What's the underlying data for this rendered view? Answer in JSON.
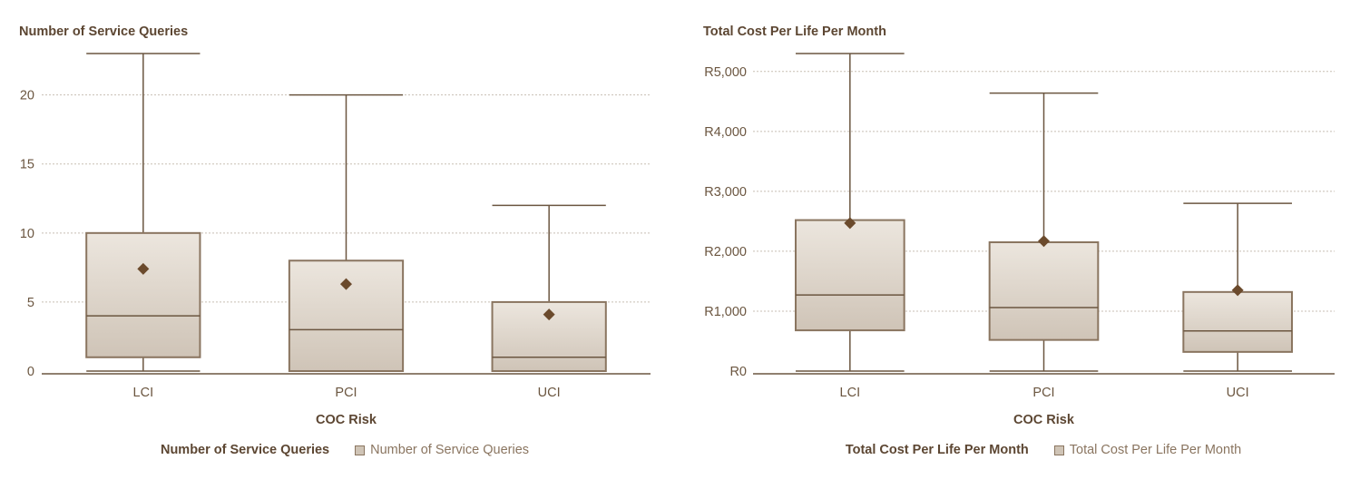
{
  "chart_data": [
    {
      "type": "box",
      "title": "Number of Service Queries",
      "xlabel": "COC Risk",
      "ylabel": "",
      "ylim": [
        0,
        23
      ],
      "yticks": [
        0,
        5,
        10,
        15,
        20
      ],
      "ytick_labels": [
        "0",
        "5",
        "10",
        "15",
        "20"
      ],
      "categories": [
        "LCI",
        "PCI",
        "UCI"
      ],
      "boxes": [
        {
          "category": "LCI",
          "min": 0,
          "q1": 1,
          "median": 4,
          "q3": 10,
          "max": 23,
          "mean": 7.4
        },
        {
          "category": "PCI",
          "min": 0,
          "q1": 0,
          "median": 3,
          "q3": 8,
          "max": 20,
          "mean": 6.3
        },
        {
          "category": "UCI",
          "min": 0,
          "q1": 0,
          "median": 1,
          "q3": 5,
          "max": 12,
          "mean": 4.1
        }
      ],
      "legend": {
        "title": "Number of Service Queries",
        "label": "Number of Service Queries",
        "placement": "bottom"
      },
      "grid": true
    },
    {
      "type": "box",
      "title": "Total Cost Per Life Per Month",
      "xlabel": "COC Risk",
      "ylabel": "",
      "ylim": [
        0,
        5300
      ],
      "yticks": [
        0,
        1000,
        2000,
        3000,
        4000,
        5000
      ],
      "ytick_labels": [
        "R0",
        "R1,000",
        "R2,000",
        "R3,000",
        "R4,000",
        "R5,000"
      ],
      "categories": [
        "LCI",
        "PCI",
        "UCI"
      ],
      "boxes": [
        {
          "category": "LCI",
          "min": 0,
          "q1": 680,
          "median": 1270,
          "q3": 2520,
          "max": 5300,
          "mean": 2470
        },
        {
          "category": "PCI",
          "min": 0,
          "q1": 520,
          "median": 1060,
          "q3": 2150,
          "max": 4640,
          "mean": 2170
        },
        {
          "category": "UCI",
          "min": 0,
          "q1": 320,
          "median": 670,
          "q3": 1320,
          "max": 2800,
          "mean": 1350
        }
      ],
      "legend": {
        "title": "Total Cost Per Life Per Month",
        "label": "Total Cost Per Life Per Month",
        "placement": "bottom"
      },
      "grid": true
    }
  ],
  "colors": {
    "axis": "#6b5640",
    "grid": "#c8bfb4",
    "box_fill": "#d9d0c5",
    "box_stroke": "#8a7560",
    "whisker": "#6b5640",
    "mean_marker": "#6b4a2c",
    "text": "#6b5640"
  }
}
